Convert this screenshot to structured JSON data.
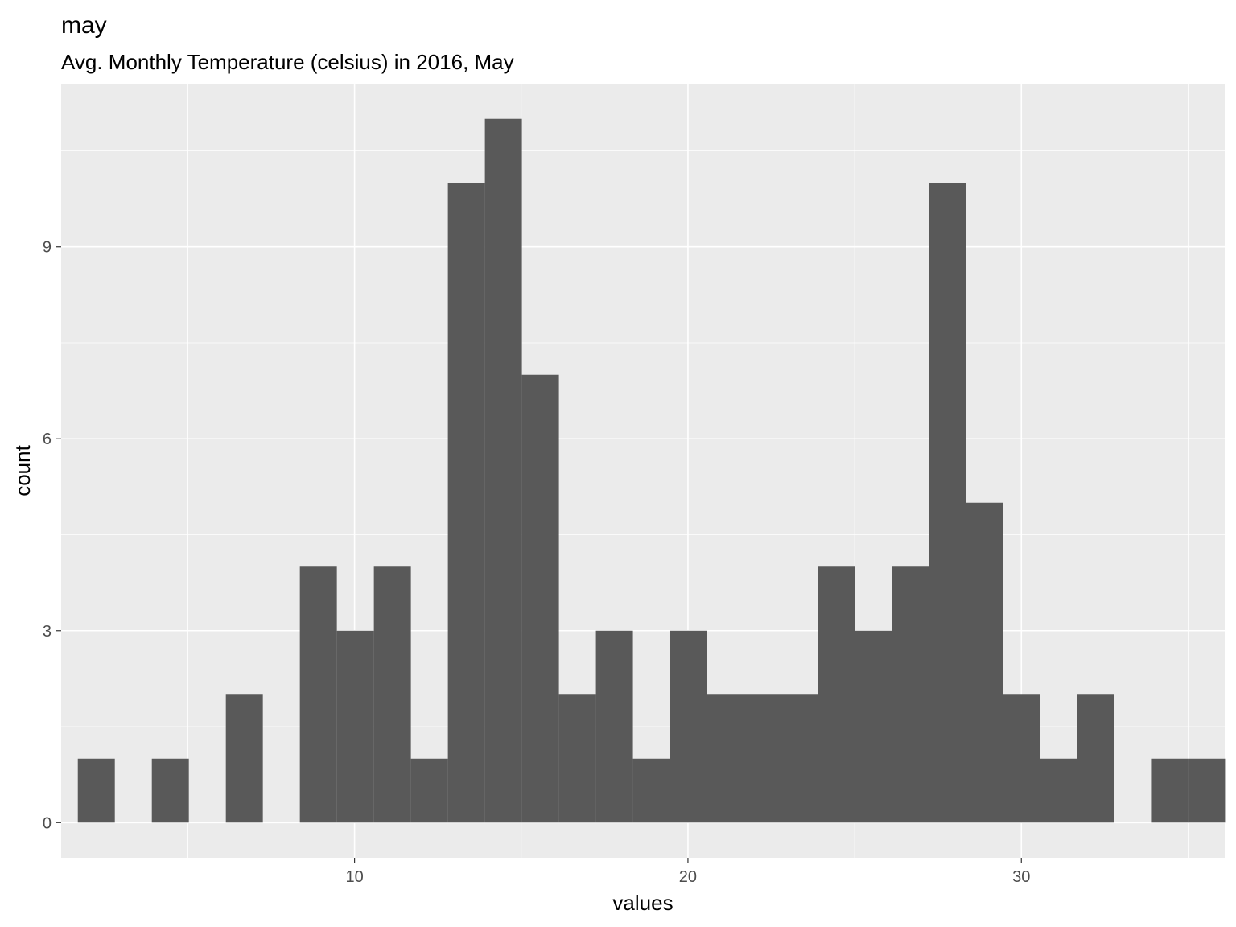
{
  "chart_data": {
    "type": "histogram",
    "title": "may",
    "subtitle": "Avg. Monthly Temperature (celsius) in 2016, May",
    "xlabel": "values",
    "ylabel": "count",
    "x_ticks": [
      10,
      20,
      30
    ],
    "y_ticks": [
      0,
      3,
      6,
      9
    ],
    "xlim": [
      1.2,
      36.1
    ],
    "ylim": [
      -0.55,
      11.55
    ],
    "grid": true,
    "bin_start": 1.7,
    "bin_width": 1.11,
    "counts": [
      1,
      0,
      1,
      0,
      2,
      0,
      4,
      3,
      4,
      1,
      10,
      11,
      7,
      2,
      3,
      1,
      3,
      2,
      2,
      2,
      4,
      3,
      4,
      10,
      5,
      2,
      1,
      2,
      0,
      1,
      1
    ],
    "colors": {
      "panel": "#ebebeb",
      "grid_major": "#ffffff",
      "bar": "#595959",
      "tick": "#333333"
    }
  }
}
